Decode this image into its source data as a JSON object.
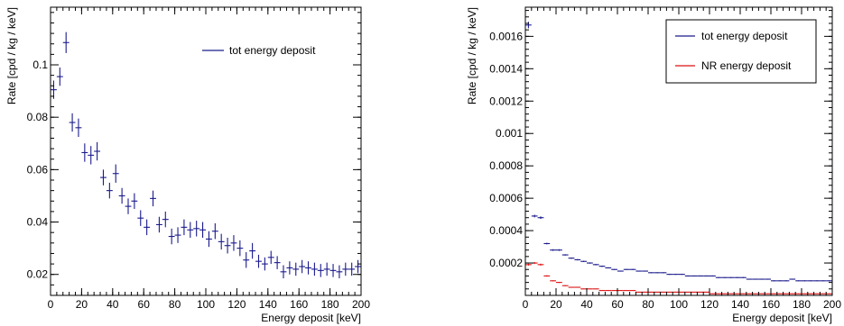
{
  "chart_data": [
    {
      "type": "scatter",
      "xlabel": "Energy deposit [keV]",
      "ylabel": "Rate [cpd / kg / keV]",
      "xlim": [
        0,
        200
      ],
      "ylim": [
        0.012,
        0.122
      ],
      "x_ticks": [
        0,
        20,
        40,
        60,
        80,
        100,
        120,
        140,
        160,
        180,
        200
      ],
      "y_ticks": [
        0.02,
        0.04,
        0.06,
        0.08,
        0.1
      ],
      "x_tick_labels": [
        "0",
        "20",
        "40",
        "60",
        "80",
        "100",
        "120",
        "140",
        "160",
        "180",
        "200"
      ],
      "y_tick_labels": [
        "0.02",
        "0.04",
        "0.06",
        "0.08",
        "0.1"
      ],
      "legend_position": "top-right",
      "grid": false,
      "series": [
        {
          "name": "tot energy deposit",
          "color": "#1a1a8c",
          "x_halfwidth": 2,
          "x": [
            2,
            6,
            10,
            14,
            18,
            22,
            26,
            30,
            34,
            38,
            42,
            46,
            50,
            54,
            58,
            62,
            66,
            70,
            74,
            78,
            82,
            86,
            90,
            94,
            98,
            102,
            106,
            110,
            114,
            118,
            122,
            126,
            130,
            134,
            138,
            142,
            146,
            150,
            154,
            158,
            162,
            166,
            170,
            174,
            178,
            182,
            186,
            190,
            194,
            198
          ],
          "y": [
            0.0905,
            0.0955,
            0.1085,
            0.078,
            0.076,
            0.0665,
            0.0655,
            0.067,
            0.057,
            0.052,
            0.0585,
            0.05,
            0.046,
            0.048,
            0.0415,
            0.038,
            0.049,
            0.039,
            0.041,
            0.0345,
            0.035,
            0.038,
            0.037,
            0.0375,
            0.037,
            0.0335,
            0.0365,
            0.0325,
            0.031,
            0.032,
            0.03,
            0.0255,
            0.029,
            0.025,
            0.024,
            0.0265,
            0.0245,
            0.021,
            0.0225,
            0.022,
            0.023,
            0.0225,
            0.022,
            0.0215,
            0.022,
            0.0215,
            0.021,
            0.022,
            0.022,
            0.023
          ],
          "y_err": [
            0.0035,
            0.0035,
            0.004,
            0.0035,
            0.0035,
            0.0035,
            0.0035,
            0.0035,
            0.003,
            0.003,
            0.0035,
            0.003,
            0.003,
            0.003,
            0.003,
            0.003,
            0.003,
            0.003,
            0.003,
            0.003,
            0.003,
            0.003,
            0.003,
            0.003,
            0.003,
            0.003,
            0.003,
            0.003,
            0.003,
            0.003,
            0.003,
            0.003,
            0.003,
            0.0025,
            0.0025,
            0.0025,
            0.0025,
            0.0025,
            0.0025,
            0.0025,
            0.0025,
            0.0025,
            0.0025,
            0.0025,
            0.0025,
            0.0025,
            0.0025,
            0.0025,
            0.0025,
            0.0025
          ]
        }
      ]
    },
    {
      "type": "scatter",
      "xlabel": "Energy deposit [keV]",
      "ylabel": "Rate [cpd / kg / keV]",
      "xlim": [
        0,
        200
      ],
      "ylim": [
        0,
        0.00178
      ],
      "x_ticks": [
        0,
        20,
        40,
        60,
        80,
        100,
        120,
        140,
        160,
        180,
        200
      ],
      "y_ticks": [
        0.0002,
        0.0004,
        0.0006,
        0.0008,
        0.001,
        0.0012,
        0.0014,
        0.0016
      ],
      "x_tick_labels": [
        "0",
        "20",
        "40",
        "60",
        "80",
        "100",
        "120",
        "140",
        "160",
        "180",
        "200"
      ],
      "y_tick_labels": [
        "0.0002",
        "0.0004",
        "0.0006",
        "0.0008",
        "0.001",
        "0.0012",
        "0.0014",
        "0.0016"
      ],
      "legend_position": "top-right",
      "grid": false,
      "series": [
        {
          "name": "tot energy deposit",
          "color": "#1a1a8c",
          "x_halfwidth": 2,
          "x": [
            2,
            6,
            10,
            14,
            18,
            22,
            26,
            30,
            34,
            38,
            42,
            46,
            50,
            54,
            58,
            62,
            66,
            70,
            74,
            78,
            82,
            86,
            90,
            94,
            98,
            102,
            106,
            110,
            114,
            118,
            122,
            126,
            130,
            134,
            138,
            142,
            146,
            150,
            154,
            158,
            162,
            166,
            170,
            174,
            178,
            182,
            186,
            190,
            194,
            198
          ],
          "y": [
            0.00167,
            0.00049,
            0.00048,
            0.00032,
            0.00028,
            0.00028,
            0.00025,
            0.00023,
            0.00022,
            0.00021,
            0.0002,
            0.00019,
            0.00018,
            0.00017,
            0.00016,
            0.00015,
            0.00016,
            0.00016,
            0.00015,
            0.00015,
            0.00014,
            0.00014,
            0.00014,
            0.00013,
            0.00013,
            0.00013,
            0.00012,
            0.00012,
            0.00012,
            0.00012,
            0.00012,
            0.00011,
            0.00011,
            0.00011,
            0.00011,
            0.00011,
            0.0001,
            0.0001,
            0.0001,
            0.0001,
            9e-05,
            9e-05,
            9e-05,
            0.0001,
            9e-05,
            9e-05,
            9e-05,
            9e-05,
            9e-05,
            9e-05
          ],
          "y_err": [
            2e-05,
            8e-06,
            8e-06,
            5e-06,
            5e-06,
            5e-06,
            4e-06,
            4e-06,
            4e-06,
            4e-06,
            4e-06,
            4e-06,
            4e-06,
            3e-06,
            3e-06,
            3e-06,
            3e-06,
            3e-06,
            3e-06,
            3e-06,
            3e-06,
            3e-06,
            3e-06,
            3e-06,
            3e-06,
            3e-06,
            3e-06,
            3e-06,
            3e-06,
            3e-06,
            3e-06,
            3e-06,
            3e-06,
            3e-06,
            3e-06,
            3e-06,
            3e-06,
            3e-06,
            3e-06,
            3e-06,
            3e-06,
            3e-06,
            3e-06,
            3e-06,
            3e-06,
            3e-06,
            3e-06,
            3e-06,
            3e-06,
            3e-06
          ]
        },
        {
          "name": "NR energy deposit",
          "color": "#dd1111",
          "x_halfwidth": 2,
          "x": [
            2,
            6,
            10,
            14,
            18,
            22,
            26,
            30,
            34,
            38,
            42,
            46,
            50,
            54,
            58,
            62,
            66,
            70,
            74,
            78,
            82,
            86,
            90,
            94,
            98,
            102,
            106,
            110,
            114,
            118,
            122,
            126,
            130,
            134,
            138,
            142,
            146,
            150,
            154,
            158,
            162,
            166,
            170,
            174,
            178,
            182,
            186,
            190,
            194,
            198
          ],
          "y": [
            0.00019,
            0.0002,
            0.00019,
            0.00012,
            9e-05,
            8e-05,
            6e-05,
            5e-05,
            5e-05,
            4e-05,
            4e-05,
            4e-05,
            3e-05,
            3e-05,
            3e-05,
            3e-05,
            3e-05,
            3e-05,
            2e-05,
            2e-05,
            2e-05,
            2e-05,
            2e-05,
            2e-05,
            2e-05,
            2e-05,
            2e-05,
            2e-05,
            2e-05,
            2e-05,
            1e-05,
            1e-05,
            1e-05,
            1e-05,
            1e-05,
            1e-05,
            1e-05,
            1e-05,
            1e-05,
            1e-05,
            1e-05,
            1e-05,
            1e-05,
            1e-05,
            1e-05,
            1e-05,
            1e-05,
            1e-05,
            1e-05,
            1e-05
          ],
          "y_err": [
            6e-06,
            6e-06,
            6e-06,
            4e-06,
            3e-06,
            3e-06,
            3e-06,
            2e-06,
            2e-06,
            2e-06,
            2e-06,
            2e-06,
            2e-06,
            2e-06,
            2e-06,
            2e-06,
            2e-06,
            2e-06,
            2e-06,
            2e-06,
            2e-06,
            2e-06,
            2e-06,
            2e-06,
            2e-06,
            2e-06,
            2e-06,
            2e-06,
            2e-06,
            2e-06,
            2e-06,
            2e-06,
            2e-06,
            2e-06,
            2e-06,
            2e-06,
            2e-06,
            2e-06,
            2e-06,
            2e-06,
            2e-06,
            2e-06,
            2e-06,
            2e-06,
            2e-06,
            2e-06,
            2e-06,
            2e-06,
            2e-06,
            2e-06
          ]
        }
      ]
    }
  ]
}
